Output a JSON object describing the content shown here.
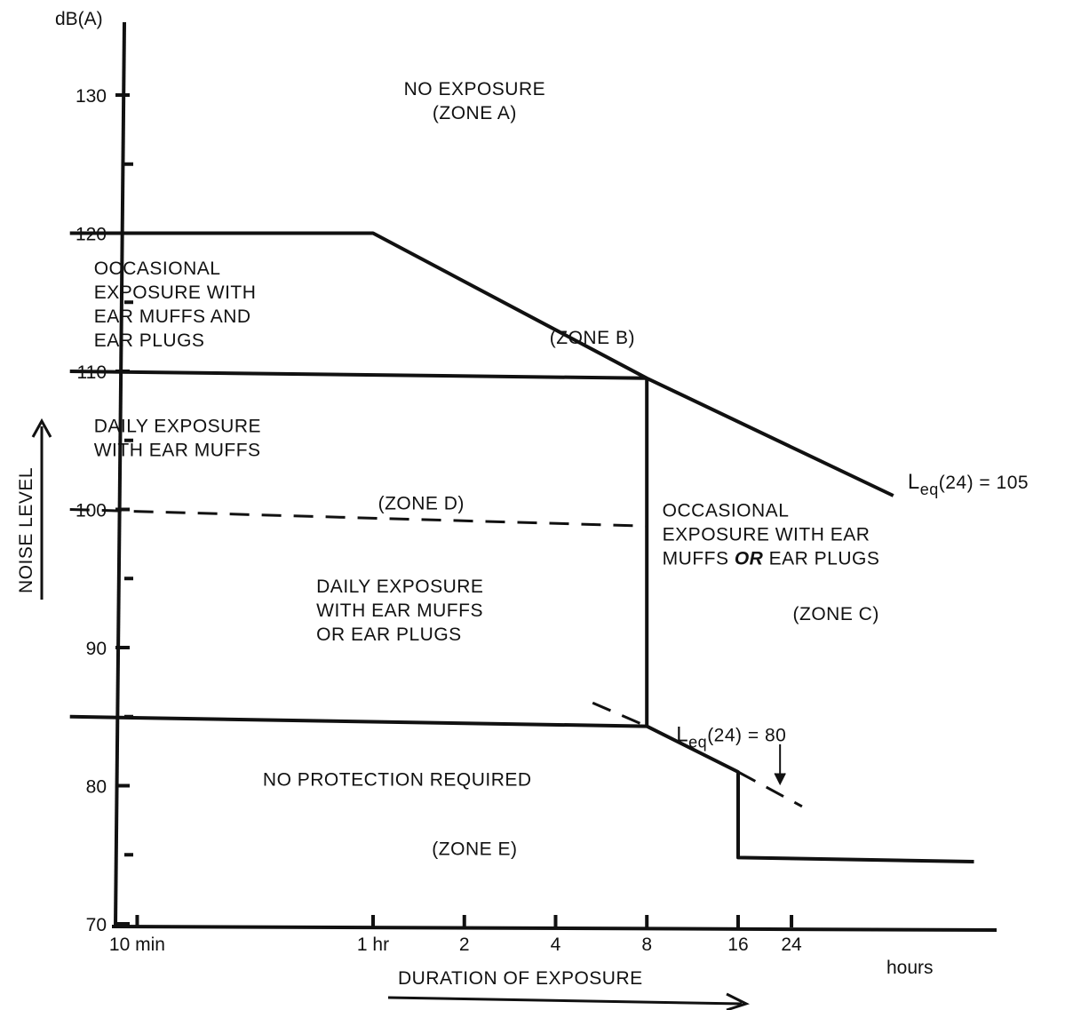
{
  "chart_data": {
    "type": "line",
    "title": "",
    "ylabel": "NOISE LEVEL",
    "yunit": "dB(A)",
    "xlabel": "DURATION OF EXPOSURE",
    "xunit": "hours",
    "ylim": [
      70,
      135
    ],
    "x_scale": "log",
    "xlim_hours": [
      0.1,
      96
    ],
    "y_ticks": [
      {
        "value": 70,
        "label": "70"
      },
      {
        "value": 80,
        "label": "80"
      },
      {
        "value": 90,
        "label": "90"
      },
      {
        "value": 100,
        "label": "100"
      },
      {
        "value": 110,
        "label": "110"
      },
      {
        "value": 120,
        "label": "120"
      },
      {
        "value": 130,
        "label": "130"
      }
    ],
    "y_minor_ticks": [
      75,
      85,
      95,
      105,
      115,
      125
    ],
    "x_ticks": [
      {
        "hours": 0.1667,
        "label": "10 min"
      },
      {
        "hours": 1,
        "label": "1 hr"
      },
      {
        "hours": 2,
        "label": "2"
      },
      {
        "hours": 4,
        "label": "4"
      },
      {
        "hours": 8,
        "label": "8"
      },
      {
        "hours": 16,
        "label": "16"
      },
      {
        "hours": 24,
        "label": "24"
      }
    ],
    "series": [
      {
        "style": "solid",
        "points": [
          [
            0.1,
            120
          ],
          [
            1,
            120
          ],
          [
            8,
            109.5
          ],
          [
            52,
            101
          ]
        ]
      },
      {
        "style": "solid",
        "points": [
          [
            0.1,
            110
          ],
          [
            8,
            109.5
          ]
        ]
      },
      {
        "style": "dashed",
        "points": [
          [
            0.1,
            100
          ],
          [
            8,
            98.8
          ]
        ]
      },
      {
        "style": "solid",
        "points": [
          [
            8,
            109.5
          ],
          [
            8,
            84.3
          ]
        ]
      },
      {
        "style": "solid",
        "points": [
          [
            0.1,
            85
          ],
          [
            8,
            84.3
          ],
          [
            16,
            81
          ],
          [
            16,
            74.8
          ],
          [
            96,
            74.5
          ]
        ]
      },
      {
        "style": "dashed",
        "points": [
          [
            5.3,
            86
          ],
          [
            8,
            84.3
          ]
        ]
      },
      {
        "style": "dashed",
        "points": [
          [
            16,
            81
          ],
          [
            26,
            78.5
          ]
        ]
      }
    ],
    "zone_labels": [
      {
        "lines": [
          "NO  EXPOSURE",
          "(ZONE A)"
        ],
        "hours": 0.9,
        "db": 130
      },
      {
        "lines": [
          "OCCASIONAL",
          "EXPOSURE WITH",
          "EAR MUFFS AND",
          "EAR PLUGS"
        ],
        "hours": 0.12,
        "db": 117
      },
      {
        "lines": [
          "(ZONE  B)"
        ],
        "hours": 2.2,
        "db": 112
      },
      {
        "lines": [
          "DAILY  EXPOSURE",
          "WITH EAR MUFFS"
        ],
        "hours": 0.12,
        "db": 105.6
      },
      {
        "lines": [
          "(ZONE D)"
        ],
        "hours": 0.6,
        "db": 100
      },
      {
        "lines": [
          "DAILY EXPOSURE",
          "WITH EAR MUFFS",
          "OR EAR PLUGS"
        ],
        "hours": 0.65,
        "db": 94
      },
      {
        "lines": [
          "OCCASIONAL",
          "EXPOSURE WITH EAR",
          "MUFFS OR EAR PLUGS"
        ],
        "hours": 9,
        "db": 99.5
      },
      {
        "lines": [
          "(ZONE C)"
        ],
        "hours": 14,
        "db": 92
      },
      {
        "lines": [
          "NO PROTECTION REQUIRED"
        ],
        "hours": 0.5,
        "db": 80
      },
      {
        "lines": [
          "(ZONE E)"
        ],
        "hours": 0.9,
        "db": 75
      }
    ],
    "line_labels": [
      {
        "sym": "L",
        "sub": "eq",
        "text": "(24) = 105",
        "hours": 58,
        "db": 101.5
      },
      {
        "sym": "L",
        "sub": "eq",
        "text": "(24) = 80",
        "hours": 10,
        "db": 83.2
      }
    ],
    "arrow_annotation": {
      "label": "Leq(24) = 80",
      "hours": 22,
      "db_from": 83,
      "db_to": 80
    }
  }
}
